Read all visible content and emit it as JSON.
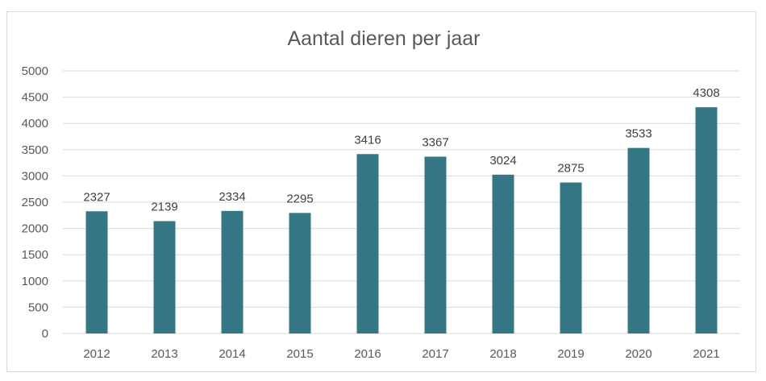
{
  "chart_data": {
    "type": "bar",
    "title": "Aantal dieren per jaar",
    "xlabel": "",
    "ylabel": "",
    "categories": [
      "2012",
      "2013",
      "2014",
      "2015",
      "2016",
      "2017",
      "2018",
      "2019",
      "2020",
      "2021"
    ],
    "values": [
      2327,
      2139,
      2334,
      2295,
      3416,
      3367,
      3024,
      2875,
      3533,
      4308
    ],
    "ylim": [
      0,
      5000
    ],
    "yticks": [
      0,
      500,
      1000,
      1500,
      2000,
      2500,
      3000,
      3500,
      4000,
      4500,
      5000
    ],
    "grid": true,
    "legend": "none",
    "bar_color": "#367785",
    "grid_color": "#d9d9d9"
  }
}
